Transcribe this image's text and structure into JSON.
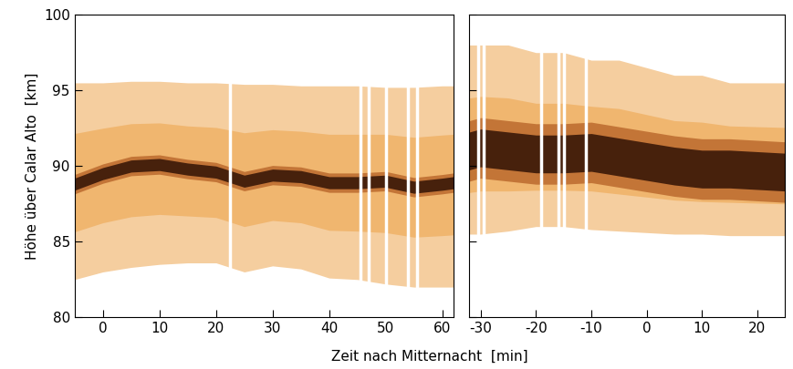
{
  "xlabel": "Zeit nach Mitternacht  [min]",
  "chart_data": [
    {
      "type": "band",
      "ylabel": "Höhe über Calar Alto  [km]",
      "tick_labels": true,
      "xlim": [
        -5,
        62
      ],
      "xticks": [
        0,
        10,
        20,
        30,
        40,
        50,
        60
      ],
      "ylim": [
        80,
        100
      ],
      "yticks": [
        80,
        85,
        90,
        95,
        100
      ],
      "x": [
        -5,
        0,
        5,
        10,
        15,
        20,
        25,
        30,
        35,
        40,
        45,
        50,
        55,
        60,
        62
      ],
      "peak": [
        88.8,
        89.5,
        90.0,
        90.1,
        89.8,
        89.6,
        89.0,
        89.4,
        89.3,
        88.9,
        88.9,
        89.0,
        88.6,
        88.8,
        88.9
      ],
      "lower": [
        82.5,
        83.0,
        83.3,
        83.5,
        83.6,
        83.6,
        83.0,
        83.4,
        83.2,
        82.6,
        82.5,
        82.2,
        82.0,
        82.0,
        82.0
      ],
      "upper": [
        95.5,
        95.5,
        95.6,
        95.6,
        95.5,
        95.5,
        95.4,
        95.4,
        95.3,
        95.3,
        95.3,
        95.2,
        95.2,
        95.3,
        95.3
      ],
      "core_width": 0.8,
      "gaps": [
        22.5,
        45.5,
        47,
        50,
        54,
        55.5
      ],
      "color": "#eea650"
    },
    {
      "type": "band",
      "tick_labels": "x",
      "xlim": [
        -32,
        25
      ],
      "xticks": [
        -30,
        -20,
        -10,
        0,
        10,
        20
      ],
      "ylim": [
        80,
        100
      ],
      "yticks": [
        80,
        85,
        90,
        95,
        100
      ],
      "x": [
        -32,
        -30,
        -25,
        -20,
        -15,
        -10,
        -5,
        0,
        5,
        10,
        15,
        20,
        25
      ],
      "peak": [
        91.0,
        91.2,
        91.0,
        90.8,
        90.8,
        90.9,
        90.6,
        90.3,
        90.0,
        89.8,
        89.8,
        89.7,
        89.6
      ],
      "lower": [
        85.5,
        85.5,
        85.7,
        86.0,
        86.0,
        85.8,
        85.7,
        85.6,
        85.5,
        85.5,
        85.4,
        85.4,
        85.4
      ],
      "upper": [
        98.0,
        98.0,
        98.0,
        97.5,
        97.5,
        97.0,
        97.0,
        96.5,
        96.0,
        96.0,
        95.5,
        95.5,
        95.5
      ],
      "core_width": 2.5,
      "gaps": [
        -30.5,
        -29.5,
        -19,
        -16,
        -15,
        -11
      ],
      "color": "#eea650"
    }
  ]
}
